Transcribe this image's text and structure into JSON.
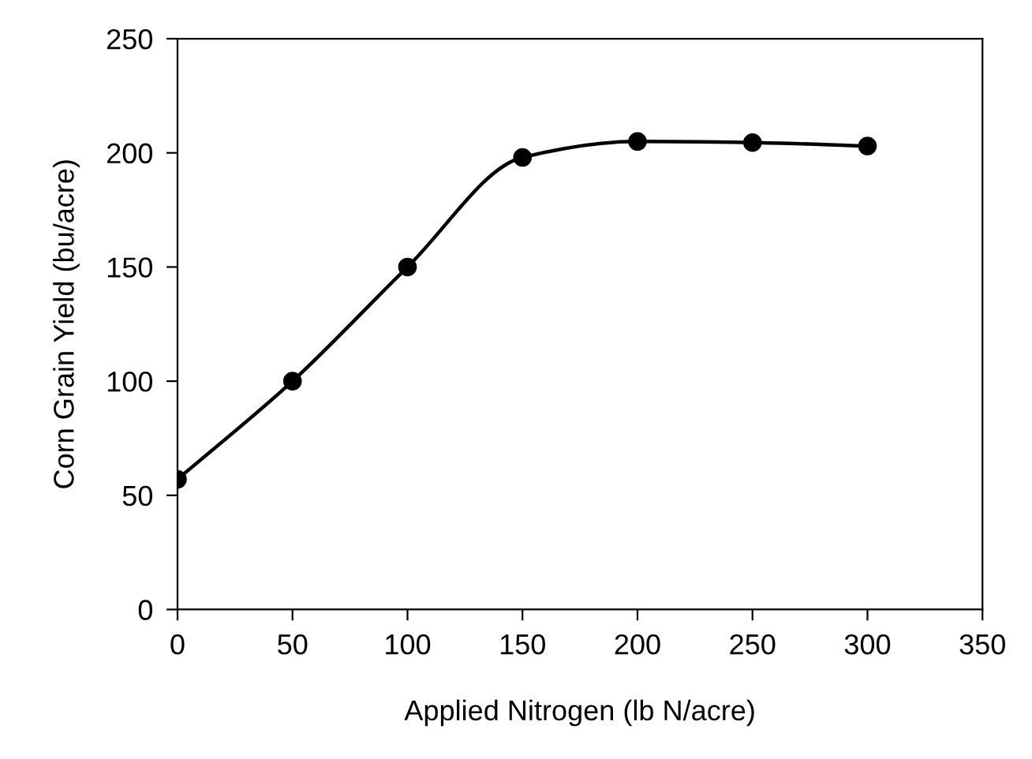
{
  "chart_data": {
    "type": "line",
    "xlabel": "Applied Nitrogen (lb N/acre)",
    "ylabel": "Corn Grain Yield (bu/acre)",
    "x": [
      0,
      50,
      100,
      150,
      200,
      250,
      300
    ],
    "series": [
      {
        "color": "#000000",
        "values": [
          57,
          100,
          150,
          198,
          205,
          204.5,
          203
        ]
      }
    ],
    "xlim": [
      0,
      350
    ],
    "xticks": [
      0,
      50,
      100,
      150,
      200,
      250,
      300,
      350
    ],
    "ylim": [
      0,
      250
    ],
    "yticks": [
      0,
      50,
      100,
      150,
      200,
      250
    ],
    "marker": "circle",
    "line_style": "solid",
    "grid": false,
    "legend": false
  }
}
